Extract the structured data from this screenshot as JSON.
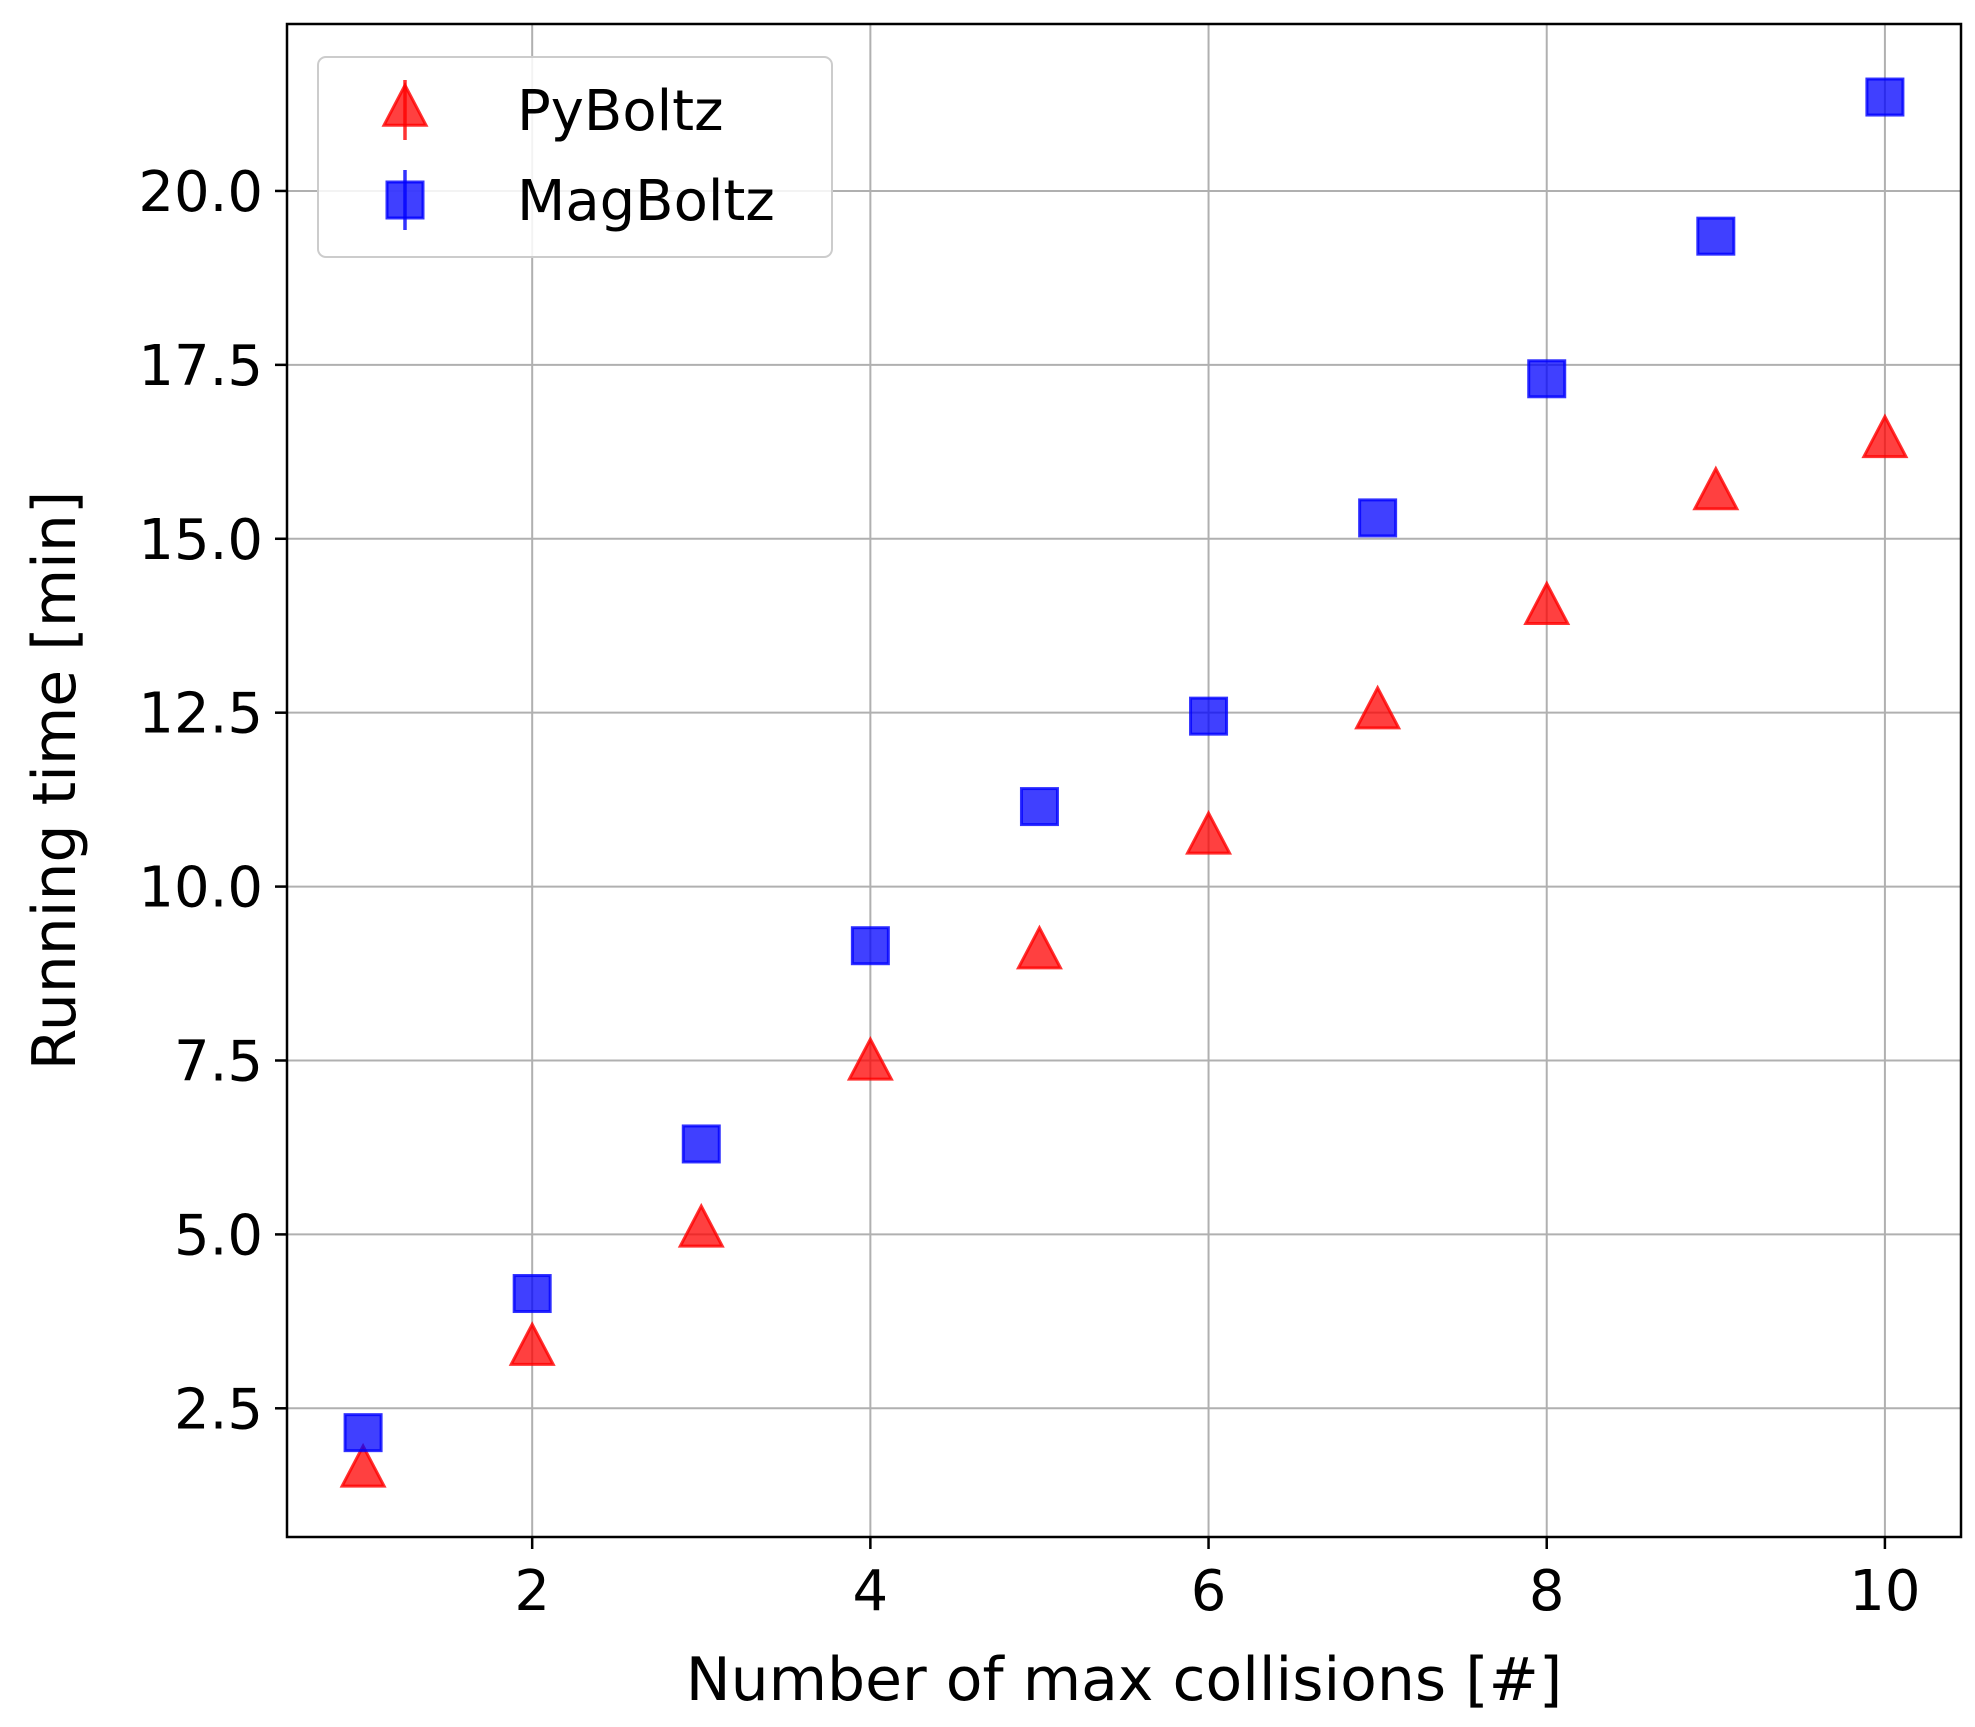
{
  "chart_data": {
    "type": "scatter",
    "title": "",
    "xlabel": "Number of max collisions [#]",
    "ylabel": "Running time [min]",
    "xlim": [
      0.55,
      10.45
    ],
    "ylim": [
      0.65,
      22.4
    ],
    "xticks": [
      2,
      4,
      6,
      8,
      10
    ],
    "xtick_labels": [
      "2",
      "4",
      "6",
      "8",
      "10"
    ],
    "yticks": [
      2.5,
      5.0,
      7.5,
      10.0,
      12.5,
      15.0,
      17.5,
      20.0
    ],
    "ytick_labels": [
      "2.5",
      "5.0",
      "7.5",
      "10.0",
      "12.5",
      "15.0",
      "17.5",
      "20.0"
    ],
    "grid": true,
    "legend_position": "top-left",
    "series": [
      {
        "name": "PyBoltz",
        "marker": "triangle",
        "color": "#ff0000",
        "x": [
          1,
          2,
          3,
          4,
          5,
          6,
          7,
          8,
          9,
          10
        ],
        "y": [
          1.6,
          3.35,
          5.05,
          7.45,
          9.05,
          10.7,
          12.5,
          14.0,
          15.65,
          16.4
        ]
      },
      {
        "name": "MagBoltz",
        "marker": "square",
        "color": "#0000ff",
        "x": [
          1,
          2,
          3,
          4,
          5,
          6,
          7,
          8,
          9,
          10
        ],
        "y": [
          2.15,
          4.15,
          6.3,
          9.15,
          11.15,
          12.45,
          15.3,
          17.3,
          19.35,
          21.35
        ]
      }
    ]
  }
}
